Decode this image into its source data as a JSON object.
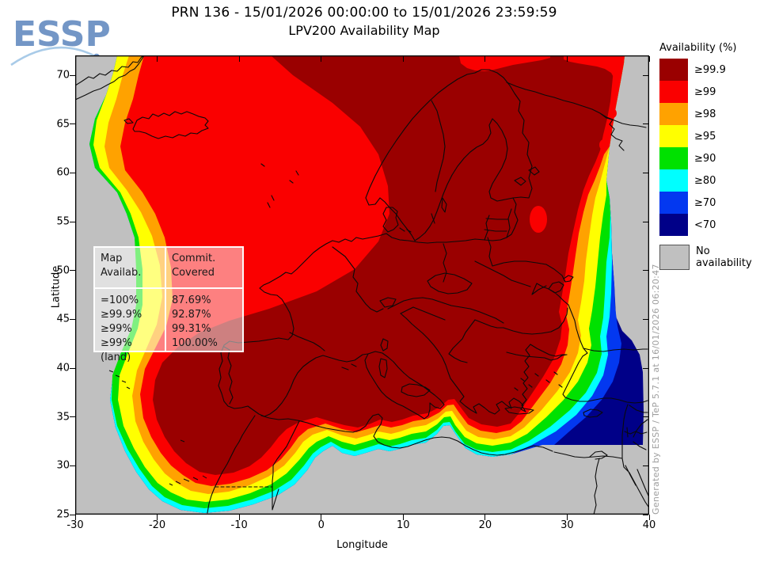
{
  "logo": {
    "text": "ESSP",
    "color": "#7396C6",
    "arc_color": "#A9CBE8"
  },
  "title": {
    "line1": "PRN 136 - 15/01/2026 00:00:00 to 15/01/2026 23:59:59",
    "line2": "LPV200 Availability Map"
  },
  "axes": {
    "x_label": "Longitude",
    "y_label": "Latitude",
    "x_ticks": [
      "-30",
      "-20",
      "-10",
      "0",
      "10",
      "20",
      "30",
      "40"
    ],
    "y_ticks": [
      "25",
      "30",
      "35",
      "40",
      "45",
      "50",
      "55",
      "60",
      "65",
      "70"
    ]
  },
  "legend": {
    "title": "Availability (%)",
    "items": [
      {
        "label": "≥99.9",
        "color": "#9A0000"
      },
      {
        "label": "≥99",
        "color": "#FA0000"
      },
      {
        "label": "≥98",
        "color": "#FFA200"
      },
      {
        "label": "≥95",
        "color": "#FFFF00"
      },
      {
        "label": "≥90",
        "color": "#00E100"
      },
      {
        "label": "≥80",
        "color": "#00FFFF"
      },
      {
        "label": "≥70",
        "color": "#0338F0"
      },
      {
        "label": "<70",
        "color": "#000088"
      }
    ],
    "no_data": {
      "label": "No availability",
      "color": "#C0C0C0"
    }
  },
  "stats_table": {
    "col1_header_line1": "Map",
    "col1_header_line2": "Availab.",
    "col2_header_line1": "Commit.",
    "col2_header_line2": "Covered",
    "rows": [
      {
        "availability": "=100%",
        "covered": "87.69%"
      },
      {
        "availability": "≥99.9%",
        "covered": "92.87%"
      },
      {
        "availability": "≥99%",
        "covered": "99.31%"
      },
      {
        "availability": "≥99% (land)",
        "covered": "100.00%"
      }
    ]
  },
  "credit": "Generated by ESSP / TeP 5.7.1 at 16/01/2026 06:20:47"
}
